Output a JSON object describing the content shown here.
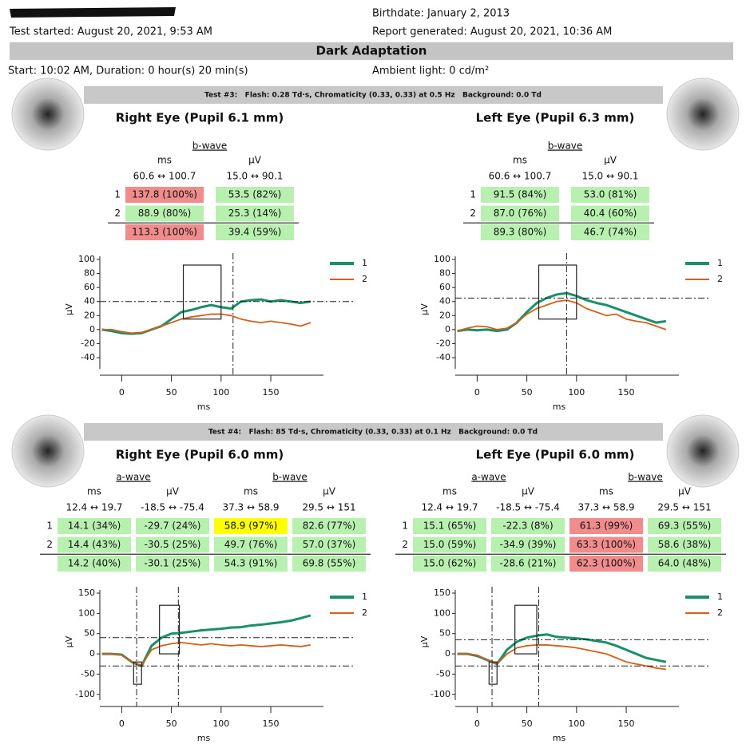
{
  "header": {
    "test_started": "Test started: August 20, 2021, 9:53 AM",
    "birthdate": "Birthdate: January 2, 2013",
    "report_generated": "Report generated: August 20, 2021, 10:36 AM",
    "section_title": "Dark Adaptation",
    "start": "Start: 10:02 AM, Duration: 0 hour(s) 20 min(s)",
    "ambient": "Ambient light: 0 cd/m²"
  },
  "tests": [
    {
      "banner": "Test #3:   Flash: 0.28 Td·s, Chromaticity (0.33, 0.33) at 0.5 Hz   Background: 0.0 Td",
      "panels": [
        {
          "title": "Right Eye (Pupil 6.1 mm)",
          "table": {
            "groups": [
              "b-wave"
            ],
            "units": [
              "ms",
              "µV"
            ],
            "ranges": [
              "60.6 ↔ 100.7",
              "15.0 ↔ 90.1"
            ],
            "rows": [
              {
                "label": "1",
                "cells": [
                  {
                    "text": "137.8 (100%)",
                    "color": "#f08c8c"
                  },
                  {
                    "text": "53.5 (82%)",
                    "color": "#b8f0b0"
                  }
                ]
              },
              {
                "label": "2",
                "cells": [
                  {
                    "text": "88.9 (80%)",
                    "color": "#b8f0b0"
                  },
                  {
                    "text": "25.3 (14%)",
                    "color": "#b8f0b0"
                  }
                ]
              },
              {
                "cells": [
                  {
                    "text": "113.3 (100%)",
                    "color": "#f08c8c"
                  },
                  {
                    "text": "39.4 (59%)",
                    "color": "#b8f0b0"
                  }
                ]
              }
            ]
          }
        },
        {
          "title": "Left Eye (Pupil 6.3 mm)",
          "table": {
            "groups": [
              "b-wave"
            ],
            "units": [
              "ms",
              "µV"
            ],
            "ranges": [
              "60.6 ↔ 100.7",
              "15.0 ↔ 90.1"
            ],
            "rows": [
              {
                "label": "1",
                "cells": [
                  {
                    "text": "91.5 (84%)",
                    "color": "#b8f0b0"
                  },
                  {
                    "text": "53.0 (81%)",
                    "color": "#b8f0b0"
                  }
                ]
              },
              {
                "label": "2",
                "cells": [
                  {
                    "text": "87.0 (76%)",
                    "color": "#b8f0b0"
                  },
                  {
                    "text": "40.4 (60%)",
                    "color": "#b8f0b0"
                  }
                ]
              },
              {
                "cells": [
                  {
                    "text": "89.3 (80%)",
                    "color": "#b8f0b0"
                  },
                  {
                    "text": "46.7 (74%)",
                    "color": "#b8f0b0"
                  }
                ]
              }
            ]
          }
        }
      ]
    },
    {
      "banner": "Test #4:   Flash: 85 Td·s, Chromaticity (0.33, 0.33) at 0.1 Hz   Background: 0.0 Td",
      "panels": [
        {
          "title": "Right Eye (Pupil 6.0 mm)",
          "table": {
            "groups": [
              "a-wave",
              "b-wave"
            ],
            "units": [
              "ms",
              "µV",
              "ms",
              "µV"
            ],
            "ranges": [
              "12.4 ↔ 19.7",
              "-18.5 ↔ -75.4",
              "37.3 ↔ 58.9",
              "29.5 ↔ 151"
            ],
            "rows": [
              {
                "label": "1",
                "cells": [
                  {
                    "text": "14.1 (34%)",
                    "color": "#b8f0b0"
                  },
                  {
                    "text": "-29.7 (24%)",
                    "color": "#b8f0b0"
                  },
                  {
                    "text": "58.9 (97%)",
                    "color": "#ffff00"
                  },
                  {
                    "text": "82.6 (77%)",
                    "color": "#b8f0b0"
                  }
                ]
              },
              {
                "label": "2",
                "cells": [
                  {
                    "text": "14.4 (43%)",
                    "color": "#b8f0b0"
                  },
                  {
                    "text": "-30.5 (25%)",
                    "color": "#b8f0b0"
                  },
                  {
                    "text": "49.7 (76%)",
                    "color": "#b8f0b0"
                  },
                  {
                    "text": "57.0 (37%)",
                    "color": "#b8f0b0"
                  }
                ]
              },
              {
                "cells": [
                  {
                    "text": "14.2 (40%)",
                    "color": "#b8f0b0"
                  },
                  {
                    "text": "-30.1 (25%)",
                    "color": "#b8f0b0"
                  },
                  {
                    "text": "54.3 (91%)",
                    "color": "#b8f0b0"
                  },
                  {
                    "text": "69.8 (55%)",
                    "color": "#b8f0b0"
                  }
                ]
              }
            ]
          }
        },
        {
          "title": "Left Eye (Pupil 6.0 mm)",
          "table": {
            "groups": [
              "a-wave",
              "b-wave"
            ],
            "units": [
              "ms",
              "µV",
              "ms",
              "µV"
            ],
            "ranges": [
              "12.4 ↔ 19.7",
              "-18.5 ↔ -75.4",
              "37.3 ↔ 58.9",
              "29.5 ↔ 151"
            ],
            "rows": [
              {
                "label": "1",
                "cells": [
                  {
                    "text": "15.1 (65%)",
                    "color": "#b8f0b0"
                  },
                  {
                    "text": "-22.3 (8%)",
                    "color": "#b8f0b0"
                  },
                  {
                    "text": "61.3 (99%)",
                    "color": "#f08c8c"
                  },
                  {
                    "text": "69.3 (55%)",
                    "color": "#b8f0b0"
                  }
                ]
              },
              {
                "label": "2",
                "cells": [
                  {
                    "text": "15.0 (59%)",
                    "color": "#b8f0b0"
                  },
                  {
                    "text": "-34.9 (39%)",
                    "color": "#b8f0b0"
                  },
                  {
                    "text": "63.3 (100%)",
                    "color": "#f08c8c"
                  },
                  {
                    "text": "58.6 (38%)",
                    "color": "#b8f0b0"
                  }
                ]
              },
              {
                "cells": [
                  {
                    "text": "15.0 (62%)",
                    "color": "#b8f0b0"
                  },
                  {
                    "text": "-28.6 (21%)",
                    "color": "#b8f0b0"
                  },
                  {
                    "text": "62.3 (100%)",
                    "color": "#f08c8c"
                  },
                  {
                    "text": "64.0 (48%)",
                    "color": "#b8f0b0"
                  }
                ]
              }
            ]
          }
        }
      ]
    }
  ],
  "chart_data": [
    {
      "type": "line",
      "x_label": "ms",
      "y_label": "µV",
      "xlim": [
        -22,
        203
      ],
      "ylim": [
        -65,
        100
      ],
      "xticks": [
        0,
        50,
        100,
        150
      ],
      "yticks": [
        -40,
        -20,
        0,
        20,
        40,
        60,
        80,
        100
      ],
      "x": [
        -20,
        -10,
        0,
        10,
        20,
        30,
        40,
        50,
        60,
        70,
        80,
        90,
        100,
        110,
        120,
        130,
        140,
        150,
        160,
        170,
        180,
        190
      ],
      "series": [
        {
          "name": "1",
          "color": "#1a8f6a",
          "values": [
            0,
            -2,
            -5,
            -6,
            -5,
            0,
            5,
            15,
            25,
            28,
            32,
            35,
            32,
            30,
            40,
            42,
            43,
            40,
            42,
            40,
            38,
            40
          ]
        },
        {
          "name": "2",
          "color": "#d2601a",
          "values": [
            0,
            0,
            -3,
            -5,
            -4,
            0,
            5,
            10,
            15,
            18,
            20,
            22,
            22,
            20,
            15,
            12,
            10,
            12,
            10,
            8,
            5,
            10
          ]
        }
      ],
      "vlines": [
        112
      ],
      "hlines": [
        40
      ],
      "boxes": [
        {
          "x": [
            62,
            100
          ],
          "y": [
            15,
            92
          ]
        }
      ]
    },
    {
      "type": "line",
      "x_label": "ms",
      "y_label": "µV",
      "xlim": [
        -22,
        203
      ],
      "ylim": [
        -65,
        100
      ],
      "xticks": [
        0,
        50,
        100,
        150
      ],
      "yticks": [
        -40,
        -20,
        0,
        20,
        40,
        60,
        80,
        100
      ],
      "x": [
        -20,
        -10,
        0,
        10,
        20,
        30,
        40,
        50,
        60,
        70,
        80,
        90,
        100,
        110,
        120,
        130,
        140,
        150,
        160,
        170,
        180,
        190
      ],
      "series": [
        {
          "name": "1",
          "color": "#1a8f6a",
          "values": [
            -2,
            0,
            -1,
            0,
            -2,
            0,
            10,
            25,
            38,
            45,
            50,
            52,
            48,
            42,
            38,
            35,
            30,
            25,
            20,
            15,
            10,
            12
          ]
        },
        {
          "name": "2",
          "color": "#d2601a",
          "values": [
            -2,
            2,
            5,
            4,
            0,
            2,
            10,
            22,
            30,
            35,
            40,
            42,
            38,
            30,
            25,
            20,
            22,
            15,
            12,
            10,
            5,
            0
          ]
        }
      ],
      "vlines": [
        90
      ],
      "hlines": [
        45
      ],
      "boxes": [
        {
          "x": [
            62,
            100
          ],
          "y": [
            15,
            92
          ]
        }
      ]
    },
    {
      "type": "line",
      "x_label": "ms",
      "y_label": "µV",
      "xlim": [
        -22,
        203
      ],
      "ylim": [
        -130,
        150
      ],
      "xticks": [
        0,
        50,
        100,
        150
      ],
      "yticks": [
        -100,
        -50,
        0,
        50,
        100,
        150
      ],
      "x": [
        -20,
        -10,
        0,
        10,
        20,
        30,
        40,
        50,
        60,
        70,
        80,
        90,
        100,
        110,
        120,
        130,
        140,
        150,
        160,
        170,
        180,
        190
      ],
      "series": [
        {
          "name": "1",
          "color": "#1a8f6a",
          "values": [
            0,
            0,
            -2,
            -20,
            -30,
            20,
            40,
            50,
            52,
            55,
            58,
            60,
            62,
            65,
            66,
            70,
            72,
            75,
            78,
            82,
            88,
            95
          ]
        },
        {
          "name": "2",
          "color": "#d2601a",
          "values": [
            0,
            0,
            -3,
            -20,
            -28,
            10,
            20,
            25,
            28,
            25,
            22,
            25,
            22,
            20,
            22,
            20,
            18,
            20,
            22,
            20,
            18,
            22
          ]
        }
      ],
      "vlines": [
        15,
        57
      ],
      "hlines": [
        40,
        -30
      ],
      "boxes": [
        {
          "x": [
            12,
            20
          ],
          "y": [
            -75,
            -20
          ]
        },
        {
          "x": [
            38,
            58
          ],
          "y": [
            0,
            120
          ]
        }
      ]
    },
    {
      "type": "line",
      "x_label": "ms",
      "y_label": "µV",
      "xlim": [
        -22,
        203
      ],
      "ylim": [
        -130,
        150
      ],
      "xticks": [
        0,
        50,
        100,
        150
      ],
      "yticks": [
        -100,
        -50,
        0,
        50,
        100,
        150
      ],
      "x": [
        -20,
        -10,
        0,
        10,
        20,
        30,
        40,
        50,
        60,
        70,
        80,
        90,
        100,
        110,
        120,
        130,
        140,
        150,
        160,
        170,
        180,
        190
      ],
      "series": [
        {
          "name": "1",
          "color": "#1a8f6a",
          "values": [
            0,
            0,
            -5,
            -15,
            -25,
            10,
            30,
            40,
            45,
            48,
            42,
            40,
            38,
            36,
            32,
            28,
            20,
            10,
            0,
            -10,
            -15,
            -20
          ]
        },
        {
          "name": "2",
          "color": "#d2601a",
          "values": [
            0,
            0,
            -3,
            -15,
            -25,
            0,
            15,
            20,
            22,
            22,
            20,
            18,
            15,
            10,
            5,
            0,
            -10,
            -20,
            -25,
            -30,
            -35,
            -38
          ]
        }
      ],
      "vlines": [
        15,
        62
      ],
      "hlines": [
        35,
        -30
      ],
      "boxes": [
        {
          "x": [
            12,
            20
          ],
          "y": [
            -75,
            -20
          ]
        },
        {
          "x": [
            38,
            60
          ],
          "y": [
            0,
            120
          ]
        }
      ]
    }
  ]
}
